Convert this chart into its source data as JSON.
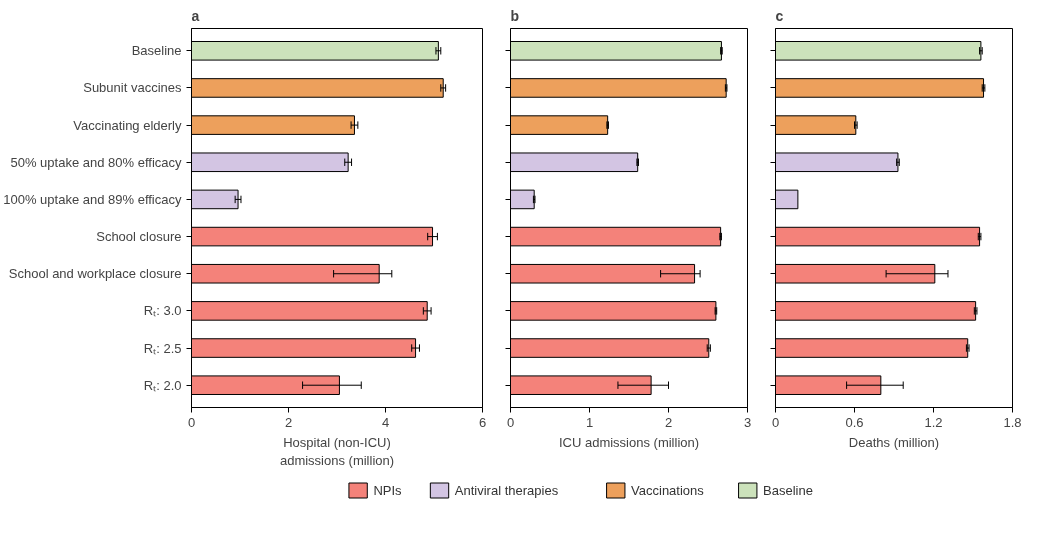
{
  "chart_data": [
    {
      "type": "bar",
      "title": "a",
      "orientation": "horizontal",
      "xlabel": "Hospital (non-ICU) admissions (million)",
      "categories": [
        "Baseline",
        "Subunit vaccines",
        "Vaccinating elderly",
        "50% uptake and 80% efficacy",
        "100% uptake and 89% efficacy",
        "School closure",
        "School and workplace closure",
        "Rₜ: 3.0",
        "Rₜ: 2.5",
        "Rₜ: 2.0"
      ],
      "xlim": [
        0,
        6
      ],
      "xticks": [
        0,
        2,
        4,
        6
      ],
      "legend": "bottom",
      "grid": false,
      "series": [
        {
          "name": "NPIs",
          "color": "#f4827a",
          "values": [
            null,
            null,
            null,
            null,
            null,
            4.97,
            3.87,
            4.86,
            4.62,
            3.05
          ],
          "errors": [
            null,
            null,
            null,
            null,
            null,
            0.1,
            [
              2.93,
              4.13
            ],
            0.08,
            0.08,
            [
              2.29,
              3.5
            ]
          ]
        },
        {
          "name": "Antiviral therapies",
          "color": "#d3c5e3",
          "values": [
            null,
            null,
            null,
            3.23,
            0.96,
            null,
            null,
            null,
            null,
            null
          ],
          "errors": [
            null,
            null,
            null,
            0.07,
            0.06,
            null,
            null,
            null,
            null,
            null
          ]
        },
        {
          "name": "Vaccinations",
          "color": "#eda05c",
          "values": [
            null,
            5.19,
            3.36,
            null,
            null,
            null,
            null,
            null,
            null,
            null
          ],
          "errors": [
            null,
            0.05,
            0.07,
            null,
            null,
            null,
            null,
            null,
            null,
            null
          ]
        },
        {
          "name": "Baseline",
          "color": "#cce2bb",
          "values": [
            5.09,
            null,
            null,
            null,
            null,
            null,
            null,
            null,
            null,
            null
          ],
          "errors": [
            0.05,
            null,
            null,
            null,
            null,
            null,
            null,
            null,
            null,
            null
          ]
        }
      ]
    },
    {
      "type": "bar",
      "title": "b",
      "orientation": "horizontal",
      "xlabel": "ICU admissions (million)",
      "categories": [
        "Baseline",
        "Subunit vaccines",
        "Vaccinating elderly",
        "50% uptake and 80% efficacy",
        "100% uptake and 89% efficacy",
        "School closure",
        "School and workplace closure",
        "Rₜ: 3.0",
        "Rₜ: 2.5",
        "Rₜ: 2.0"
      ],
      "tick_labels": "x",
      "xlim": [
        0,
        3
      ],
      "xticks": [
        0,
        1,
        2,
        3
      ],
      "grid": false,
      "series": [
        {
          "color": "#f4827a",
          "values": [
            null,
            null,
            null,
            null,
            null,
            2.66,
            2.33,
            2.6,
            2.51,
            1.78
          ],
          "errors": [
            null,
            null,
            null,
            null,
            null,
            0.01,
            [
              1.9,
              2.4
            ],
            0.01,
            0.02,
            [
              1.36,
              2.0
            ]
          ]
        },
        {
          "color": "#d3c5e3",
          "values": [
            null,
            null,
            null,
            1.61,
            0.3,
            null,
            null,
            null,
            null,
            null
          ],
          "errors": [
            null,
            null,
            null,
            0.01,
            0.01,
            null,
            null,
            null,
            null,
            null
          ]
        },
        {
          "color": "#eda05c",
          "values": [
            null,
            2.73,
            1.23,
            null,
            null,
            null,
            null,
            null,
            null,
            null
          ],
          "errors": [
            null,
            0.01,
            0.01,
            null,
            null,
            null,
            null,
            null,
            null,
            null
          ]
        },
        {
          "color": "#cce2bb",
          "values": [
            2.67,
            null,
            null,
            null,
            null,
            null,
            null,
            null,
            null,
            null
          ],
          "errors": [
            0.01,
            null,
            null,
            null,
            null,
            null,
            null,
            null,
            null,
            null
          ]
        }
      ]
    },
    {
      "type": "bar",
      "title": "c",
      "orientation": "horizontal",
      "xlabel": "Deaths (million)",
      "categories": [
        "Baseline",
        "Subunit vaccines",
        "Vaccinating elderly",
        "50% uptake and 80% efficacy",
        "100% uptake and 89% efficacy",
        "School closure",
        "School and workplace closure",
        "Rₜ: 3.0",
        "Rₜ: 2.5",
        "Rₜ: 2.0"
      ],
      "tick_labels": "x",
      "xlim": [
        0,
        1.8
      ],
      "xticks": [
        0,
        0.6,
        1.2,
        1.8
      ],
      "grid": false,
      "series": [
        {
          "color": "#f4827a",
          "values": [
            null,
            null,
            null,
            null,
            null,
            1.55,
            1.21,
            1.52,
            1.46,
            0.8
          ],
          "errors": [
            null,
            null,
            null,
            null,
            null,
            0.01,
            [
              0.84,
              1.31
            ],
            0.01,
            0.01,
            [
              0.54,
              0.97
            ]
          ]
        },
        {
          "color": "#d3c5e3",
          "values": [
            null,
            null,
            null,
            0.93,
            0.17,
            null,
            null,
            null,
            null,
            null
          ],
          "errors": [
            null,
            null,
            null,
            0.01,
            null,
            null,
            null,
            null,
            null,
            null
          ]
        },
        {
          "color": "#eda05c",
          "values": [
            null,
            1.58,
            0.61,
            null,
            null,
            null,
            null,
            null,
            null,
            null
          ],
          "errors": [
            null,
            0.01,
            0.01,
            null,
            null,
            null,
            null,
            null,
            null,
            null
          ]
        },
        {
          "color": "#cce2bb",
          "values": [
            1.56,
            null,
            null,
            null,
            null,
            null,
            null,
            null,
            null,
            null
          ],
          "errors": [
            0.01,
            null,
            null,
            null,
            null,
            null,
            null,
            null,
            null,
            null
          ]
        }
      ]
    }
  ]
}
